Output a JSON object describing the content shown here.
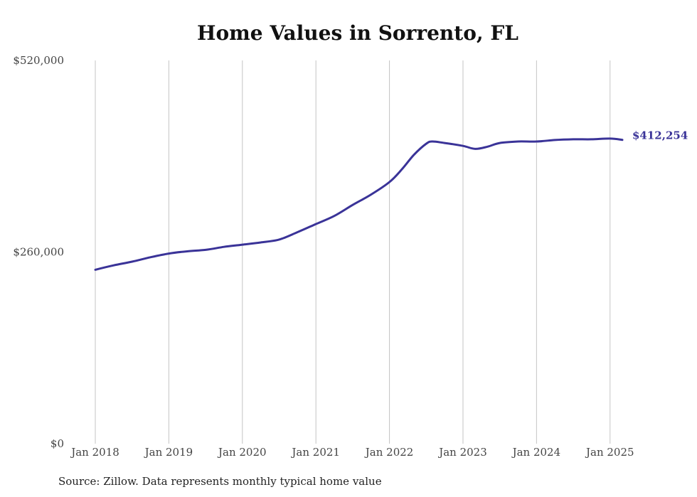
{
  "chart_data": {
    "type": "line",
    "title": "Home Values in Sorrento, FL",
    "source": "Source: Zillow. Data represents monthly typical home value",
    "xlabel": "",
    "ylabel": "",
    "ylim": [
      0,
      520000
    ],
    "yticks": [
      {
        "value": 0,
        "label": "$0"
      },
      {
        "value": 260000,
        "label": "$260,000"
      },
      {
        "value": 520000,
        "label": "$520,000"
      }
    ],
    "xlim": [
      "2018-01",
      "2025-03"
    ],
    "xticks": [
      {
        "value": "2018-01",
        "label": "Jan 2018"
      },
      {
        "value": "2019-01",
        "label": "Jan 2019"
      },
      {
        "value": "2020-01",
        "label": "Jan 2020"
      },
      {
        "value": "2021-01",
        "label": "Jan 2021"
      },
      {
        "value": "2022-01",
        "label": "Jan 2022"
      },
      {
        "value": "2023-01",
        "label": "Jan 2023"
      },
      {
        "value": "2024-01",
        "label": "Jan 2024"
      },
      {
        "value": "2025-01",
        "label": "Jan 2025"
      }
    ],
    "grid": {
      "vertical": true,
      "horizontal": false
    },
    "line_color": "#3a3398",
    "end_label": "$412,254",
    "series": [
      {
        "points": [
          {
            "x": "2018-01",
            "y": 236000
          },
          {
            "x": "2018-04",
            "y": 242000
          },
          {
            "x": "2018-07",
            "y": 247000
          },
          {
            "x": "2018-10",
            "y": 253000
          },
          {
            "x": "2019-01",
            "y": 258000
          },
          {
            "x": "2019-04",
            "y": 261000
          },
          {
            "x": "2019-07",
            "y": 263000
          },
          {
            "x": "2019-10",
            "y": 267000
          },
          {
            "x": "2020-01",
            "y": 270000
          },
          {
            "x": "2020-04",
            "y": 273000
          },
          {
            "x": "2020-07",
            "y": 277000
          },
          {
            "x": "2020-10",
            "y": 287000
          },
          {
            "x": "2021-01",
            "y": 298000
          },
          {
            "x": "2021-04",
            "y": 309000
          },
          {
            "x": "2021-07",
            "y": 324000
          },
          {
            "x": "2021-10",
            "y": 338000
          },
          {
            "x": "2022-01",
            "y": 355000
          },
          {
            "x": "2022-03",
            "y": 372000
          },
          {
            "x": "2022-05",
            "y": 392000
          },
          {
            "x": "2022-07",
            "y": 407000
          },
          {
            "x": "2022-08",
            "y": 410000
          },
          {
            "x": "2022-10",
            "y": 408000
          },
          {
            "x": "2023-01",
            "y": 404000
          },
          {
            "x": "2023-03",
            "y": 400000
          },
          {
            "x": "2023-05",
            "y": 403000
          },
          {
            "x": "2023-07",
            "y": 408000
          },
          {
            "x": "2023-10",
            "y": 410000
          },
          {
            "x": "2024-01",
            "y": 410000
          },
          {
            "x": "2024-04",
            "y": 412000
          },
          {
            "x": "2024-07",
            "y": 413000
          },
          {
            "x": "2024-10",
            "y": 413000
          },
          {
            "x": "2025-01",
            "y": 414000
          },
          {
            "x": "2025-03",
            "y": 412254
          }
        ]
      }
    ]
  }
}
